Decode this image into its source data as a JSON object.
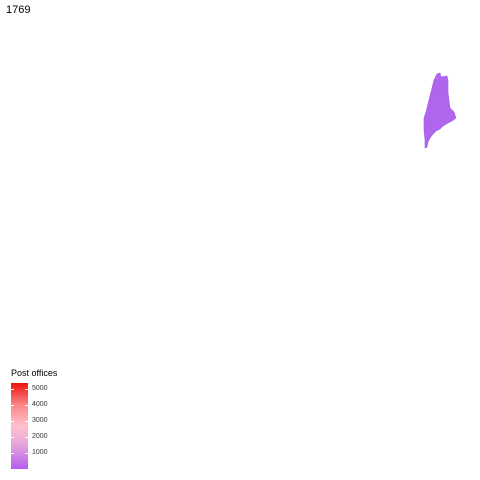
{
  "map": {
    "year": "1769",
    "states": [
      {
        "name": "Maine",
        "fill": "#b065ee"
      }
    ]
  },
  "legend": {
    "title": "Post offices",
    "scale_min": 0,
    "scale_max": 5400,
    "ticks": [
      {
        "label": "1000",
        "value": 1000
      },
      {
        "label": "2000",
        "value": 2000
      },
      {
        "label": "3000",
        "value": 3000
      },
      {
        "label": "4000",
        "value": 4000
      },
      {
        "label": "5000",
        "value": 5000
      }
    ],
    "colors": {
      "low": "#b45cf0",
      "mid": "#ffc2cc",
      "high": "#f01010"
    }
  }
}
